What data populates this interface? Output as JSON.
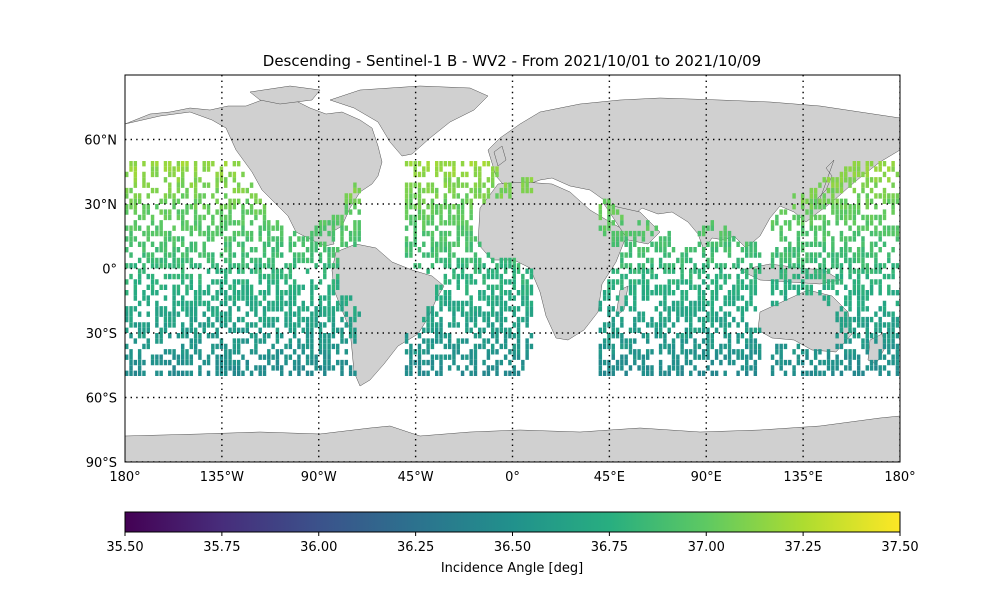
{
  "map": {
    "title": "Descending - Sentinel-1 B - WV2 - From 2021/10/01 to 2021/10/09",
    "projection": "equirectangular",
    "extent": {
      "lon": [
        -180,
        180
      ],
      "lat": [
        -90,
        90
      ]
    },
    "land_color": "#d0d0d0",
    "ocean_color": "#ffffff",
    "grid": {
      "style": "dotted",
      "lon_lines": [
        -135,
        -90,
        -45,
        0,
        45,
        90,
        135,
        180
      ],
      "lat_lines": [
        -90,
        -60,
        -30,
        0,
        30,
        60
      ]
    },
    "lon_ticks": [
      {
        "lon": -180,
        "label": "180°"
      },
      {
        "lon": -135,
        "label": "135°W"
      },
      {
        "lon": -90,
        "label": "90°W"
      },
      {
        "lon": -45,
        "label": "45°W"
      },
      {
        "lon": 0,
        "label": "0°"
      },
      {
        "lon": 45,
        "label": "45°E"
      },
      {
        "lon": 90,
        "label": "90°E"
      },
      {
        "lon": 135,
        "label": "135°E"
      },
      {
        "lon": 180,
        "label": "180°"
      }
    ],
    "lat_ticks": [
      {
        "lat": 60,
        "label": "60°N"
      },
      {
        "lat": 30,
        "label": "30°N"
      },
      {
        "lat": 0,
        "label": "0°"
      },
      {
        "lat": -30,
        "label": "30°S"
      },
      {
        "lat": -60,
        "label": "60°S"
      },
      {
        "lat": -90,
        "label": "90°S"
      }
    ],
    "data_region": {
      "lat_range": [
        -50,
        50
      ]
    },
    "swath_bands": [
      {
        "lon_range": [
          -180,
          -70
        ]
      },
      {
        "lon_range": [
          -50,
          0
        ]
      },
      {
        "lon_range": [
          0,
          10
        ]
      },
      {
        "lon_range": [
          40,
          115
        ]
      },
      {
        "lon_range": [
          120,
          180
        ]
      }
    ]
  },
  "colorbar": {
    "label": "Incidence Angle [deg]",
    "colormap": "viridis",
    "range": [
      35.5,
      37.5
    ],
    "ticks": [
      "35.50",
      "35.75",
      "36.00",
      "36.25",
      "36.50",
      "36.75",
      "37.00",
      "37.25",
      "37.50"
    ]
  }
}
